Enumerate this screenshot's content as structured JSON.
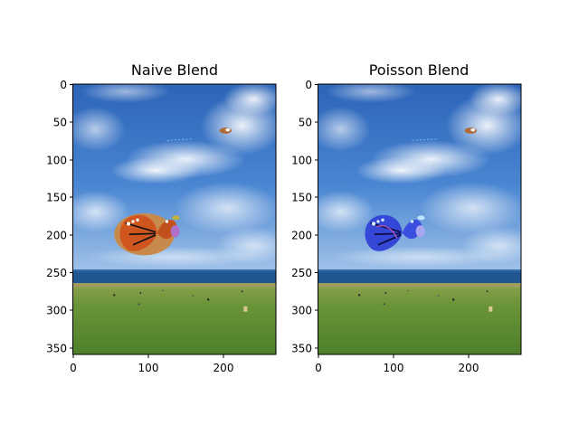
{
  "figure": {
    "panels": [
      {
        "title": "Naive Blend",
        "x_ticks": [
          "0",
          "100",
          "200"
        ],
        "y_ticks": [
          "0",
          "50",
          "100",
          "150",
          "200",
          "250",
          "300",
          "350"
        ],
        "overlay_style": "naive"
      },
      {
        "title": "Poisson Blend",
        "x_ticks": [
          "0",
          "100",
          "200"
        ],
        "y_ticks": [
          "0",
          "50",
          "100",
          "150",
          "200",
          "250",
          "300",
          "350"
        ],
        "overlay_style": "poisson"
      }
    ],
    "image_extent": {
      "width": 270,
      "height": 360
    },
    "colors": {
      "sky_top": "#2f6fc2",
      "sky_horizon": "#8fb5e3",
      "sea": "#1d4e86",
      "grass": "#5f8e34",
      "naive_blob": "#c68a4a",
      "naive_wing": "#c7521d",
      "poisson_wing": "#3547d8",
      "poisson_accent": "#a6a8f5"
    }
  }
}
